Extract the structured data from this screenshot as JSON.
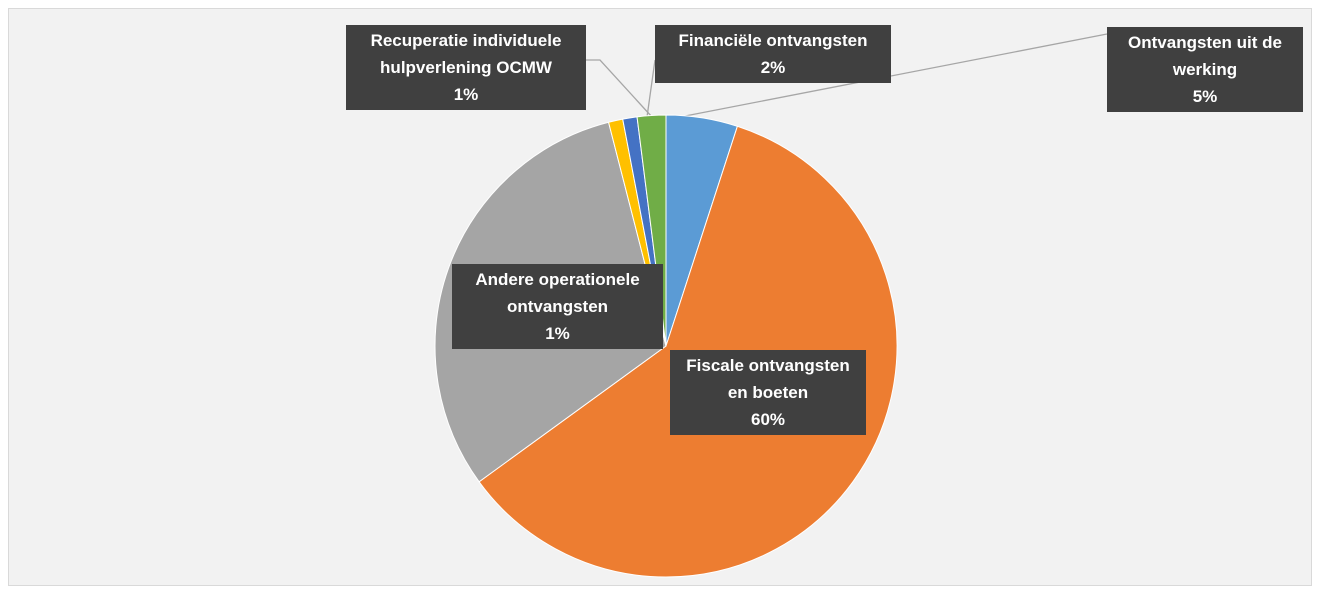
{
  "chart_data": {
    "type": "pie",
    "categories": [
      "Ontvangsten uit de werking",
      "Fiscale ontvangsten en boeten",
      null,
      "Andere operationele ontvangsten",
      "Recuperatie individuele hulpverlening OCMW",
      "Financiële ontvangsten"
    ],
    "values": [
      5,
      60,
      31,
      1,
      1,
      2
    ],
    "value_labels": [
      "5%",
      "60%",
      null,
      "1%",
      "1%",
      "2%"
    ],
    "colors": [
      "#5b9bd5",
      "#ed7d31",
      "#a5a5a5",
      "#ffc000",
      "#4472c4",
      "#70ad47"
    ]
  }
}
